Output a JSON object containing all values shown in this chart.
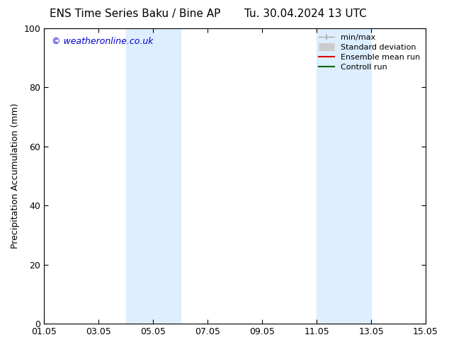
{
  "title_left": "ENS Time Series Baku / Bine AP",
  "title_right": "Tu. 30.04.2024 13 UTC",
  "ylabel": "Precipitation Accumulation (mm)",
  "watermark": "© weatheronline.co.uk",
  "watermark_color": "#0000cc",
  "ylim": [
    0,
    100
  ],
  "yticks": [
    0,
    20,
    40,
    60,
    80,
    100
  ],
  "xtick_labels": [
    "01.05",
    "03.05",
    "05.05",
    "07.05",
    "09.05",
    "11.05",
    "13.05",
    "15.05"
  ],
  "x_start": 0.0,
  "x_end": 14.0,
  "x_tick_positions": [
    0,
    2,
    4,
    6,
    8,
    10,
    12,
    14
  ],
  "shaded_bands": [
    {
      "x_start": 3.0,
      "x_end": 5.0,
      "color": "#ddeeff"
    },
    {
      "x_start": 10.0,
      "x_end": 12.0,
      "color": "#ddeeff"
    }
  ],
  "legend_items": [
    {
      "label": "min/max",
      "color": "#aaaaaa",
      "lw": 1.0,
      "style": "caps"
    },
    {
      "label": "Standard deviation",
      "color": "#cccccc",
      "lw": 5,
      "style": "thick"
    },
    {
      "label": "Ensemble mean run",
      "color": "#dd0000",
      "lw": 1.5,
      "style": "line"
    },
    {
      "label": "Controll run",
      "color": "#006600",
      "lw": 1.5,
      "style": "line"
    }
  ],
  "bg_color": "#ffffff",
  "plot_bg_color": "#ffffff",
  "title_fontsize": 11,
  "axis_label_fontsize": 9,
  "tick_fontsize": 9,
  "legend_fontsize": 8,
  "watermark_fontsize": 9
}
